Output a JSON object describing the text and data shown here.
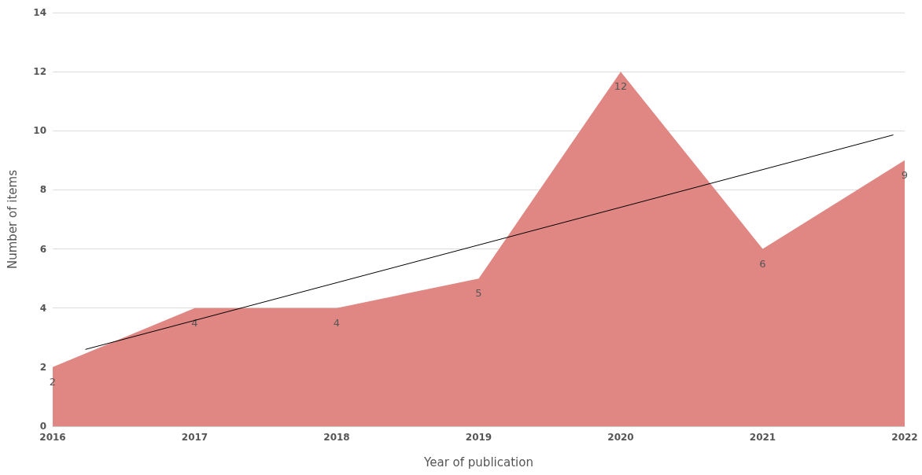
{
  "chart_data": {
    "type": "area",
    "xlabel": "Year of publication",
    "ylabel": "Number of items",
    "x": [
      2016,
      2017,
      2018,
      2019,
      2020,
      2021,
      2022
    ],
    "series": [
      {
        "color": "#e08683",
        "values": [
          2,
          4,
          4,
          5,
          12,
          6,
          9
        ],
        "value_labels": [
          "2",
          "4",
          "4",
          "5",
          "12",
          "6",
          "9"
        ]
      },
      {
        "type": "line",
        "color": "#000000",
        "x": [
          2016.23,
          2021.92
        ],
        "values": [
          2.6,
          9.86
        ]
      }
    ],
    "xlim": [
      2016,
      2022
    ],
    "xticks": [
      2016,
      2017,
      2018,
      2019,
      2020,
      2021,
      2022
    ],
    "ylim": [
      0,
      14
    ],
    "yticks": [
      0,
      2,
      4,
      6,
      8,
      10,
      12,
      14
    ],
    "grid": "y",
    "marker": "none"
  }
}
